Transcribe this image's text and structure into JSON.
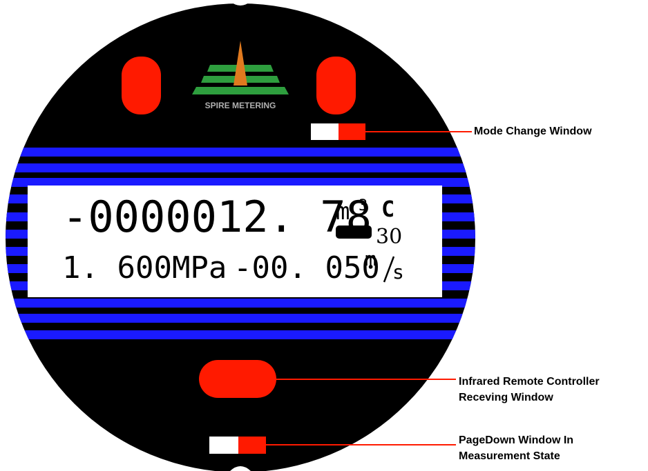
{
  "brand": {
    "name": "SPIRE METERING"
  },
  "lcd": {
    "line1": {
      "value": "-0000012. 78",
      "unit_base": "m",
      "unit_exp": "3",
      "flag": "C"
    },
    "code": "30",
    "line2": {
      "pressure": "1. 600MPa",
      "velocity": "-00. 050",
      "unit_top": "m",
      "unit_bottom": "s"
    }
  },
  "callouts": {
    "mode_change": "Mode Change Window",
    "infrared_line1": "Infrared Remote Controller",
    "infrared_line2": "Receving Window",
    "pagedown_line1": "PageDown Window In",
    "pagedown_line2": "Measurement State"
  },
  "colors": {
    "dial": "#000000",
    "stripe": "#1a1aff",
    "button": "#ff1a00",
    "lcd_background": "#ffffff",
    "logo_green": "#2e9e3e",
    "logo_orange": "#e07a1f"
  }
}
